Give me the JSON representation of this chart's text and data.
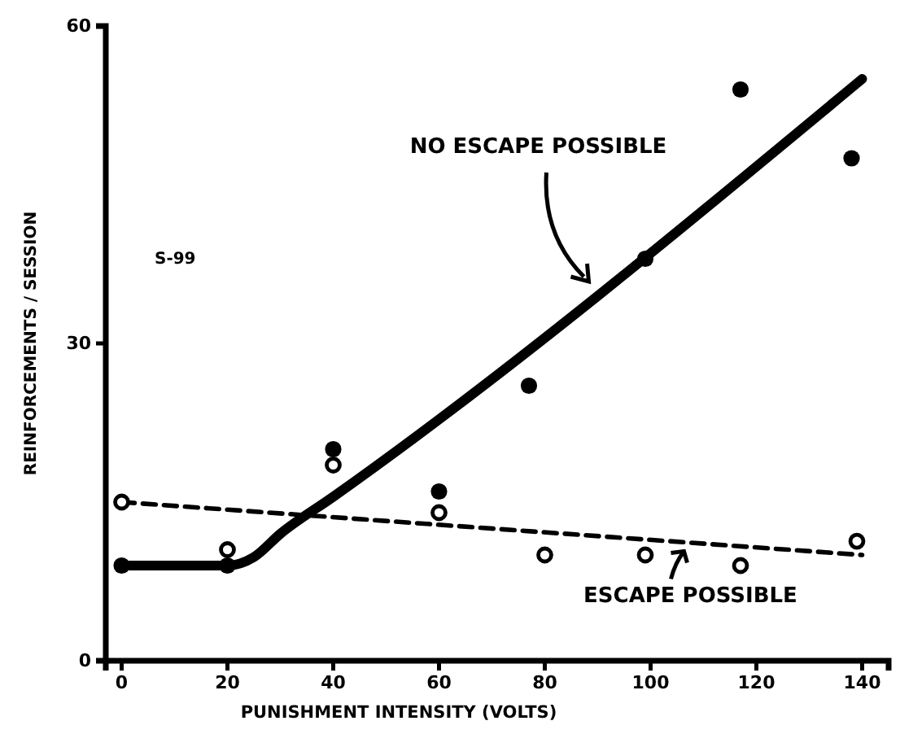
{
  "chart_data": {
    "type": "scatter",
    "xlabel": "PUNISHMENT INTENSITY (VOLTS)",
    "ylabel": "REINFORCEMENTS / SESSION",
    "xlim": [
      -3,
      145
    ],
    "xticks": [
      0,
      20,
      40,
      60,
      80,
      100,
      120,
      140
    ],
    "ylim": [
      0,
      60
    ],
    "yticks": [
      0,
      30,
      60
    ],
    "marker": "circle",
    "series": [
      {
        "type": "scatter",
        "color": "#000000",
        "x": [
          0,
          20,
          40,
          60,
          77,
          99,
          117,
          138
        ],
        "values": [
          9,
          9,
          20,
          16,
          26,
          38,
          54,
          47.5
        ]
      },
      {
        "type": "scatter",
        "color": "#000000",
        "x": [
          0,
          20,
          40,
          60,
          80,
          99,
          117,
          139
        ],
        "values": [
          15,
          10.5,
          18.5,
          14,
          10,
          10,
          9,
          11.3
        ]
      },
      {
        "type": "line",
        "color": "#000000",
        "marker": "none",
        "line_style": "solid",
        "x": [
          0,
          20,
          25,
          30,
          40,
          140
        ],
        "values": [
          9,
          9,
          9.8,
          12,
          15.5,
          55
        ]
      },
      {
        "type": "line",
        "color": "#000000",
        "marker": "none",
        "line_style": "dashed",
        "x": [
          0,
          140
        ],
        "values": [
          15,
          10
        ]
      }
    ],
    "annotations": [
      "NO ESCAPE POSSIBLE",
      "ESCAPE POSSIBLE",
      "S-99"
    ]
  }
}
